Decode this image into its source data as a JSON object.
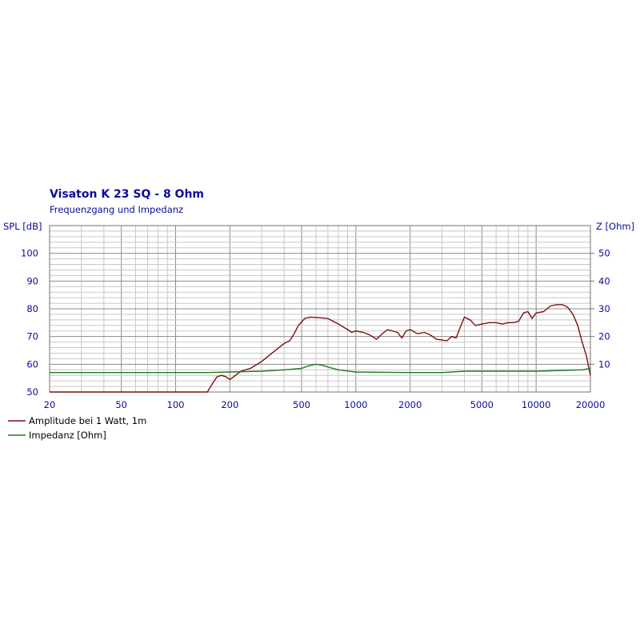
{
  "colors": {
    "text_blue": "#0b0b9c",
    "amplitude": "#7a1010",
    "impedance": "#1f7a1f",
    "grid_major": "#8c8c8c",
    "grid_minor": "#c8c8c8",
    "frame": "#707070"
  },
  "chart_data": {
    "type": "line",
    "title": "Visaton K 23 SQ - 8 Ohm",
    "subtitle": "Frequenzgang und Impedanz",
    "x_scale": "log",
    "xlim": [
      20,
      20000
    ],
    "ylim_left": [
      50,
      110
    ],
    "ylim_right": [
      0,
      60
    ],
    "ylabel_left": "SPL [dB]",
    "ylabel_right": "Z [Ohm]",
    "x_ticks": [
      "20",
      "50",
      "100",
      "200",
      "500",
      "1000",
      "2000",
      "5000",
      "10000",
      "20000"
    ],
    "y_ticks_left": [
      "50",
      "60",
      "70",
      "80",
      "90",
      "100"
    ],
    "y_ticks_right": [
      "10",
      "20",
      "30",
      "40",
      "50"
    ],
    "grid": true,
    "legend_position": "bottom-left",
    "series": [
      {
        "name": "Amplitude bei 1 Watt, 1m",
        "axis": "left",
        "points": [
          [
            20,
            50
          ],
          [
            100,
            50
          ],
          [
            150,
            50
          ],
          [
            160,
            53
          ],
          [
            170,
            55.5
          ],
          [
            180,
            56
          ],
          [
            190,
            55.5
          ],
          [
            200,
            54.5
          ],
          [
            210,
            55.5
          ],
          [
            230,
            57.5
          ],
          [
            260,
            58.5
          ],
          [
            300,
            61
          ],
          [
            350,
            64.5
          ],
          [
            400,
            67.5
          ],
          [
            430,
            68.5
          ],
          [
            450,
            70.5
          ],
          [
            480,
            74
          ],
          [
            520,
            76.5
          ],
          [
            560,
            77
          ],
          [
            620,
            76.8
          ],
          [
            700,
            76.5
          ],
          [
            800,
            74.5
          ],
          [
            900,
            72.5
          ],
          [
            950,
            71.5
          ],
          [
            1000,
            72
          ],
          [
            1100,
            71.5
          ],
          [
            1200,
            70.5
          ],
          [
            1300,
            69
          ],
          [
            1400,
            71
          ],
          [
            1500,
            72.5
          ],
          [
            1700,
            71.5
          ],
          [
            1800,
            69.5
          ],
          [
            1900,
            72
          ],
          [
            2000,
            72.5
          ],
          [
            2200,
            71
          ],
          [
            2400,
            71.5
          ],
          [
            2600,
            70.5
          ],
          [
            2800,
            69
          ],
          [
            3200,
            68.5
          ],
          [
            3400,
            70
          ],
          [
            3600,
            69.5
          ],
          [
            3800,
            73.5
          ],
          [
            4000,
            77
          ],
          [
            4300,
            76
          ],
          [
            4600,
            74
          ],
          [
            5000,
            74.5
          ],
          [
            5500,
            75
          ],
          [
            6000,
            75
          ],
          [
            6500,
            74.5
          ],
          [
            7000,
            75
          ],
          [
            7500,
            75
          ],
          [
            8000,
            75.5
          ],
          [
            8500,
            78.5
          ],
          [
            9000,
            79
          ],
          [
            9500,
            76.5
          ],
          [
            10000,
            78.5
          ],
          [
            11000,
            79
          ],
          [
            12000,
            81
          ],
          [
            13000,
            81.5
          ],
          [
            14000,
            81.5
          ],
          [
            15000,
            80.5
          ],
          [
            16000,
            78
          ],
          [
            17000,
            74
          ],
          [
            18000,
            68
          ],
          [
            19000,
            63
          ],
          [
            20000,
            56
          ]
        ]
      },
      {
        "name": "Impedanz [Ohm]",
        "axis": "right",
        "points": [
          [
            20,
            7
          ],
          [
            150,
            7
          ],
          [
            200,
            7.2
          ],
          [
            300,
            7.5
          ],
          [
            400,
            8
          ],
          [
            500,
            8.5
          ],
          [
            550,
            9.5
          ],
          [
            600,
            10
          ],
          [
            650,
            9.7
          ],
          [
            700,
            9
          ],
          [
            800,
            8
          ],
          [
            1000,
            7.2
          ],
          [
            2000,
            7
          ],
          [
            3000,
            7
          ],
          [
            4000,
            7.5
          ],
          [
            6000,
            7.5
          ],
          [
            10000,
            7.5
          ],
          [
            14000,
            7.8
          ],
          [
            18000,
            8
          ],
          [
            20000,
            8.5
          ]
        ]
      }
    ]
  }
}
